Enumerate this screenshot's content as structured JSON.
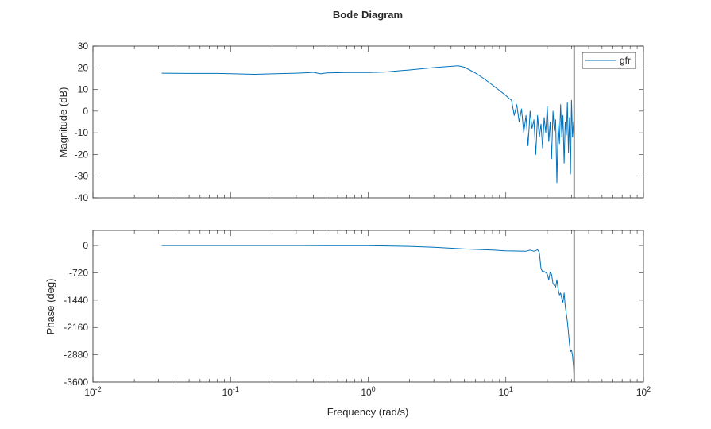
{
  "chart_data": {
    "type": "line",
    "title": "Bode Diagram",
    "xlabel": "Frequency (rad/s)",
    "xscale": "log",
    "xlim": [
      0.01,
      100
    ],
    "x_tick_labels": [
      {
        "base": "10",
        "exp": "-2",
        "value": 0.01
      },
      {
        "base": "10",
        "exp": "-1",
        "value": 0.1
      },
      {
        "base": "10",
        "exp": "0",
        "value": 1
      },
      {
        "base": "10",
        "exp": "1",
        "value": 10
      },
      {
        "base": "10",
        "exp": "2",
        "value": 100
      }
    ],
    "vertical_marker_frequency": 31.4,
    "legend": {
      "entries": [
        "gfr"
      ],
      "placement": "top-right"
    },
    "color": "#0072BD",
    "marker_color": "#A0A0A0",
    "magnitude": {
      "ylabel": "Magnitude (dB)",
      "ylim": [
        -40,
        30
      ],
      "yticks": [
        30,
        20,
        10,
        0,
        -10,
        -20,
        -30,
        -40
      ],
      "x": [
        0.0316,
        0.05,
        0.08,
        0.1,
        0.15,
        0.2,
        0.3,
        0.35,
        0.4,
        0.45,
        0.5,
        0.7,
        1,
        1.3,
        2,
        3,
        4,
        4.5,
        5,
        6,
        7,
        8,
        9,
        10,
        10.5,
        11,
        11.5,
        12,
        12.5,
        13,
        13.5,
        14,
        14.5,
        15,
        15.5,
        16,
        16.5,
        17,
        17.5,
        18,
        18.5,
        19,
        19.5,
        20,
        20.5,
        21,
        21.5,
        22,
        22.5,
        23,
        23.5,
        24,
        24.5,
        25,
        25.5,
        26,
        26.5,
        27,
        27.5,
        28,
        28.5,
        29,
        29.5,
        30,
        30.5,
        31,
        31.4
      ],
      "y": [
        17.5,
        17.4,
        17.4,
        17.3,
        17.0,
        17.2,
        17.5,
        17.7,
        17.9,
        17.2,
        17.6,
        17.8,
        17.8,
        18.0,
        19.0,
        20.1,
        20.7,
        20.9,
        20.3,
        17.6,
        14.8,
        12.0,
        9.5,
        7.2,
        6.0,
        5,
        -2,
        3,
        -5,
        1,
        -10,
        -2,
        -16,
        0,
        -8,
        -4,
        -20,
        -2,
        -12,
        -6,
        -17,
        -3,
        -10,
        2,
        -14,
        -5,
        -22,
        0,
        -9,
        -4,
        -33,
        -6,
        -15,
        3,
        -12,
        -2,
        -24,
        -5,
        -11,
        4,
        -19,
        -3,
        -29,
        5,
        -12,
        -5,
        -15
      ]
    },
    "phase": {
      "ylabel": "Phase (deg)",
      "ylim": [
        -3600,
        400
      ],
      "yticks": [
        0,
        -720,
        -1440,
        -2160,
        -2880,
        -3600
      ],
      "x": [
        0.0316,
        0.1,
        0.5,
        1,
        2,
        3,
        5,
        8,
        10,
        14,
        15,
        16,
        17,
        17.5,
        18,
        18.5,
        19,
        20,
        20.5,
        21,
        21.5,
        22,
        23,
        23.5,
        24,
        24.5,
        25,
        25.5,
        26,
        26.5,
        27,
        28,
        28.5,
        29,
        29.5,
        30,
        30.5,
        31,
        31.4
      ],
      "y": [
        0,
        0,
        -2,
        -5,
        -20,
        -45,
        -90,
        -120,
        -140,
        -150,
        -120,
        -150,
        -110,
        -180,
        -600,
        -700,
        -680,
        -750,
        -900,
        -700,
        -760,
        -1000,
        -1100,
        -900,
        -1150,
        -1300,
        -1250,
        -1400,
        -1500,
        -1250,
        -1600,
        -2000,
        -2300,
        -2600,
        -2800,
        -2750,
        -2900,
        -3200,
        -3500
      ]
    }
  }
}
